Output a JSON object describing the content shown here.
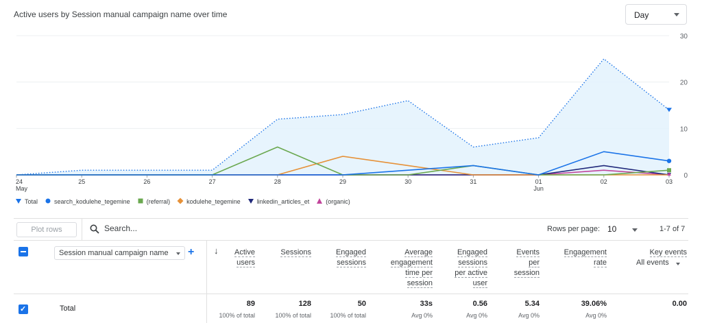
{
  "header": {
    "title": "Active users by Session manual campaign name over time",
    "granularity": "Day"
  },
  "chart_data": {
    "type": "line",
    "x": [
      "24 May",
      "25",
      "26",
      "27",
      "28",
      "29",
      "30",
      "31",
      "01 Jun",
      "02",
      "03"
    ],
    "x_labels": [
      {
        "top": "24",
        "bottom": "May"
      },
      {
        "top": "25",
        "bottom": ""
      },
      {
        "top": "26",
        "bottom": ""
      },
      {
        "top": "27",
        "bottom": ""
      },
      {
        "top": "28",
        "bottom": ""
      },
      {
        "top": "29",
        "bottom": ""
      },
      {
        "top": "30",
        "bottom": ""
      },
      {
        "top": "31",
        "bottom": ""
      },
      {
        "top": "01",
        "bottom": "Jun"
      },
      {
        "top": "02",
        "bottom": ""
      },
      {
        "top": "03",
        "bottom": ""
      }
    ],
    "ylim": [
      0,
      30
    ],
    "y_ticks": [
      0,
      10,
      20,
      30
    ],
    "grid": true,
    "legend_position": "bottom-left",
    "series": [
      {
        "name": "Total",
        "color": "#1a73e8",
        "style": "dotted-area",
        "values": [
          0,
          1,
          1,
          1,
          12,
          13,
          16,
          6,
          8,
          25,
          14
        ]
      },
      {
        "name": "search_kodulehe_tegemine",
        "color": "#1a73e8",
        "style": "solid",
        "values": [
          0,
          0,
          0,
          0,
          0,
          0,
          1,
          2,
          0,
          5,
          3
        ]
      },
      {
        "name": "(referral)",
        "color": "#6aa84f",
        "style": "solid",
        "values": [
          0,
          0,
          0,
          0,
          6,
          0,
          0,
          2,
          0,
          0,
          1
        ]
      },
      {
        "name": "kodulehe_tegemine",
        "color": "#e69138",
        "style": "solid",
        "values": [
          0,
          0,
          0,
          0,
          0,
          4,
          2,
          0,
          0,
          0,
          0
        ]
      },
      {
        "name": "linkedin_articles_et",
        "color": "#20287a",
        "style": "solid",
        "values": [
          0,
          0,
          0,
          0,
          0,
          0,
          0,
          0,
          0,
          2,
          0
        ]
      },
      {
        "name": "(organic)",
        "color": "#c2459b",
        "style": "solid",
        "values": [
          0,
          0,
          0,
          0,
          0,
          0,
          0,
          0,
          0,
          1,
          0
        ]
      }
    ]
  },
  "legend": [
    {
      "label": "Total",
      "icon": "marker-pin-icon",
      "color": "#1a73e8"
    },
    {
      "label": "search_kodulehe_tegemine",
      "icon": "circle-icon",
      "color": "#1a73e8"
    },
    {
      "label": "(referral)",
      "icon": "square-icon",
      "color": "#6aa84f"
    },
    {
      "label": "kodulehe_tegemine",
      "icon": "diamond-icon",
      "color": "#e69138"
    },
    {
      "label": "linkedin_articles_et",
      "icon": "triangle-down-icon",
      "color": "#20287a"
    },
    {
      "label": "(organic)",
      "icon": "triangle-up-icon",
      "color": "#c2459b"
    }
  ],
  "toolbar": {
    "plot_rows": "Plot rows",
    "search_placeholder": "Search...",
    "rows_per_page_label": "Rows per page:",
    "rows_per_page_value": "10",
    "pagination": "1-7 of 7"
  },
  "table": {
    "dimension": "Session manual campaign name",
    "columns": [
      {
        "label": [
          "Active",
          "users"
        ]
      },
      {
        "label": [
          "Sessions"
        ]
      },
      {
        "label": [
          "Engaged",
          "sessions"
        ]
      },
      {
        "label": [
          "Average",
          "engagement",
          "time per",
          "session"
        ]
      },
      {
        "label": [
          "Engaged",
          "sessions",
          "per active",
          "user"
        ]
      },
      {
        "label": [
          "Events",
          "per",
          "session"
        ]
      },
      {
        "label": [
          "Engagement",
          "rate"
        ]
      },
      {
        "label": [
          "Key events"
        ],
        "sub": "All events"
      }
    ],
    "total": {
      "label": "Total",
      "values": [
        "89",
        "128",
        "50",
        "33s",
        "0.56",
        "5.34",
        "39.06%",
        "0.00"
      ],
      "subs": [
        "100% of total",
        "100% of total",
        "100% of total",
        "Avg 0%",
        "Avg 0%",
        "Avg 0%",
        "Avg 0%",
        ""
      ]
    }
  }
}
